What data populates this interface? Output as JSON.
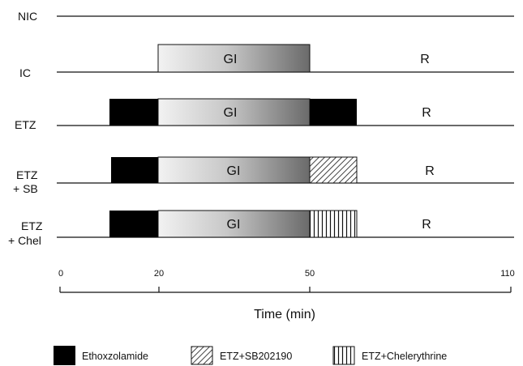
{
  "rows": [
    {
      "label_lines": [
        "NIC"
      ]
    },
    {
      "label_lines": [
        "IC"
      ],
      "center_label": "GI",
      "recovery_label": "R"
    },
    {
      "label_lines": [
        "ETZ"
      ],
      "center_label": "GI",
      "recovery_label": "R"
    },
    {
      "label_lines": [
        "ETZ",
        "+ SB"
      ],
      "center_label": "GI",
      "recovery_label": "R"
    },
    {
      "label_lines": [
        "ETZ",
        "+ Chel"
      ],
      "center_label": "GI",
      "recovery_label": "R"
    }
  ],
  "axis": {
    "title": "Time (min)",
    "ticks": [
      "0",
      "20",
      "50",
      "110"
    ]
  },
  "legend": [
    {
      "key": "black",
      "label": "Ethoxzolamide"
    },
    {
      "key": "diag",
      "label": "ETZ+SB202190"
    },
    {
      "key": "vert",
      "label": "ETZ+Chelerythrine"
    }
  ],
  "colors": {
    "line": "#111111",
    "ethoxzolamide": "#000000",
    "gradient_start": "#f2f2f2",
    "gradient_end": "#6a6a6a"
  }
}
